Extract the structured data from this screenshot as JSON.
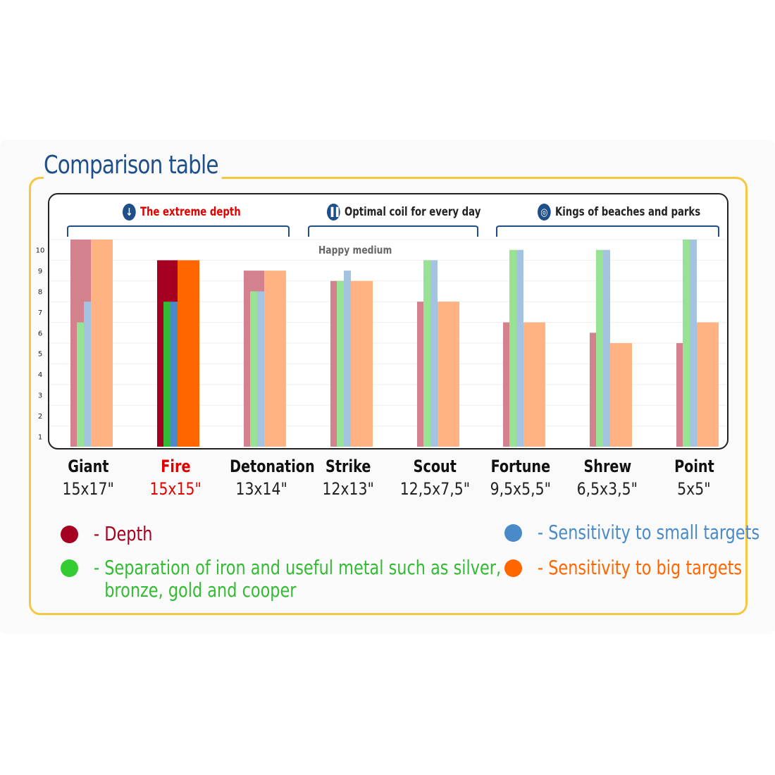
{
  "title": "Comparison table",
  "groups": [
    {
      "label": "The extreme depth",
      "icon": "arrow-down-icon",
      "color": "#e00000"
    },
    {
      "label": "Optimal coil for every day",
      "icon": "bar-chart-icon",
      "color": "#222222"
    },
    {
      "label": "Kings of beaches and parks",
      "icon": "target-icon",
      "color": "#222222"
    }
  ],
  "annotation": "Happy medium",
  "coils": [
    {
      "name": "Giant",
      "size": "15x17\""
    },
    {
      "name": "Fire",
      "size": "15x15\""
    },
    {
      "name": "Detonation",
      "size": "13x14\""
    },
    {
      "name": "Strike",
      "size": "12x13\""
    },
    {
      "name": "Scout",
      "size": "12,5x7,5\""
    },
    {
      "name": "Fortune",
      "size": "9,5x5,5\""
    },
    {
      "name": "Shrew",
      "size": "6,5x3,5\""
    },
    {
      "name": "Point",
      "size": "5x5\""
    }
  ],
  "legend": [
    {
      "label": "- Depth",
      "color": "#a50021"
    },
    {
      "label": "- Separation of iron and useful metal such as silver,",
      "label2": "bronze, gold and cooper",
      "color": "#33cc33"
    },
    {
      "label": "- Sensitivity to small targets",
      "color": "#4a8ac9"
    },
    {
      "label": "- Sensitivity to big targets",
      "color": "#ff6600"
    }
  ],
  "chart_data": {
    "type": "bar",
    "categories": [
      "Giant",
      "Fire",
      "Detonation",
      "Strike",
      "Scout",
      "Fortune",
      "Shrew",
      "Point"
    ],
    "yticks": [
      "1",
      "2",
      "3",
      "4",
      "5",
      "6",
      "7",
      "8",
      "9",
      "10"
    ],
    "ylim": [
      0.5,
      10.5
    ],
    "series": [
      {
        "name": "- Depth",
        "values": [
          10.5,
          9.5,
          9,
          8.5,
          7.5,
          6.5,
          6,
          5.5
        ],
        "color": "#d4818e",
        "highlight": "#a50021"
      },
      {
        "name": "- Separation of iron and useful metal such as silver, bronze, gold and cooper",
        "values": [
          6.5,
          7.5,
          8,
          8.5,
          9.5,
          10,
          10,
          10.5
        ],
        "color": "#98e294",
        "highlight": "#33bb33"
      },
      {
        "name": "- Sensitivity to small targets",
        "values": [
          7.5,
          7.5,
          8,
          9,
          9.5,
          10,
          10,
          10.5
        ],
        "color": "#a3c3e1",
        "highlight": "#4a8ac9"
      },
      {
        "name": "- Sensitivity to big targets",
        "values": [
          10.5,
          9.5,
          9,
          8.5,
          7.5,
          6.5,
          5.5,
          6.5
        ],
        "color": "#ffb382",
        "highlight": "#ff6600"
      }
    ],
    "highlight_category": "Fire",
    "grid": true
  }
}
